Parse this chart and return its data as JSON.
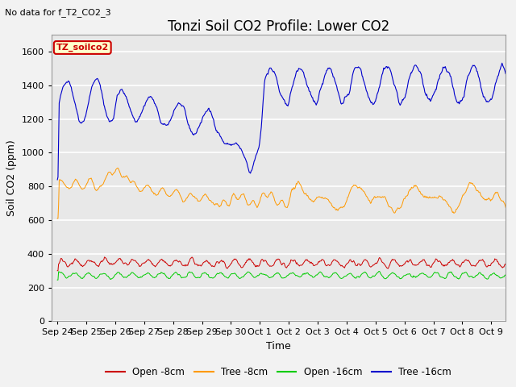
{
  "title": "Tonzi Soil CO2 Profile: Lower CO2",
  "subtitle": "No data for f_T2_CO2_3",
  "ylabel": "Soil CO2 (ppm)",
  "xlabel": "Time",
  "box_label": "TZ_soilco2",
  "ylim": [
    0,
    1700
  ],
  "yticks": [
    0,
    200,
    400,
    600,
    800,
    1000,
    1200,
    1400,
    1600
  ],
  "xtick_labels": [
    "Sep 24",
    "Sep 25",
    "Sep 26",
    "Sep 27",
    "Sep 28",
    "Sep 29",
    "Sep 30",
    "Oct 1",
    "Oct 2",
    "Oct 3",
    "Oct 4",
    "Oct 5",
    "Oct 6",
    "Oct 7",
    "Oct 8",
    "Oct 9"
  ],
  "legend_labels": [
    "Open -8cm",
    "Tree -8cm",
    "Open -16cm",
    "Tree -16cm"
  ],
  "legend_colors": [
    "#cc0000",
    "#ff9900",
    "#00cc00",
    "#0000cc"
  ],
  "bg_color": "#e8e8e8",
  "plot_bg_color": "#e8e8e8",
  "grid_color": "#ffffff",
  "title_fontsize": 12,
  "label_fontsize": 9,
  "tick_fontsize": 8,
  "subtitle_fontsize": 8
}
